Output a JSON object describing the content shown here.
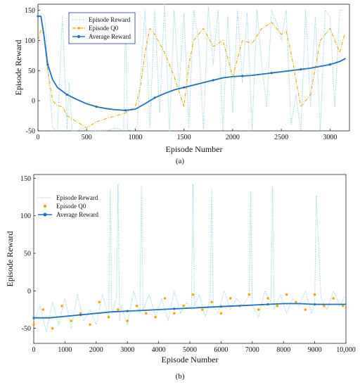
{
  "chart_data": [
    {
      "type": "line",
      "panel_label": "(a)",
      "xlabel": "Episode Number",
      "ylabel": "Episode Reward",
      "xlim": [
        0,
        3200
      ],
      "ylim": [
        -50,
        160
      ],
      "xticks": [
        0,
        500,
        1000,
        1500,
        2000,
        2500,
        3000
      ],
      "xtick_labels": [
        "0",
        "500",
        "1000",
        "1500",
        "2000",
        "2500",
        "3000"
      ],
      "yticks": [
        -50,
        0,
        50,
        100,
        150
      ],
      "ytick_labels": [
        "-50",
        "0",
        "50",
        "100",
        "150"
      ],
      "grid": false,
      "legend_position": "top-left",
      "series": [
        {
          "name": "Episode Reward",
          "color": "#87cde8",
          "style": "dotted",
          "x": [
            0,
            40,
            70,
            100,
            150,
            200,
            250,
            300,
            320,
            350,
            400,
            450,
            500,
            600,
            700,
            800,
            880,
            900,
            920,
            980,
            1020,
            1100,
            1150,
            1200,
            1250,
            1300,
            1350,
            1400,
            1450,
            1500,
            1550,
            1600,
            1650,
            1700,
            1750,
            1800,
            1850,
            1900,
            1950,
            2000,
            2050,
            2100,
            2150,
            2200,
            2250,
            2300,
            2350,
            2400,
            2450,
            2500,
            2550,
            2600,
            2650,
            2700,
            2750,
            2800,
            2850,
            2900,
            2950,
            3000,
            3050,
            3100,
            3150
          ],
          "y": [
            140,
            145,
            140,
            60,
            -45,
            -50,
            140,
            -48,
            30,
            -50,
            -50,
            -45,
            -50,
            -50,
            -50,
            -45,
            -50,
            140,
            -48,
            -50,
            -40,
            150,
            -45,
            150,
            -20,
            160,
            -50,
            150,
            20,
            145,
            -45,
            150,
            100,
            -48,
            155,
            60,
            150,
            -50,
            140,
            -20,
            150,
            30,
            145,
            -48,
            150,
            60,
            -10,
            150,
            130,
            100,
            150,
            -40,
            10,
            -50,
            150,
            -10,
            140,
            -50,
            150,
            140,
            -10,
            150,
            150
          ]
        },
        {
          "name": "Episode Q0",
          "color": "#f0a900",
          "style": "dashdot",
          "x": [
            0,
            30,
            60,
            100,
            150,
            200,
            250,
            300,
            350,
            400,
            450,
            500,
            600,
            700,
            800,
            900,
            1000,
            1050,
            1100,
            1150,
            1200,
            1300,
            1400,
            1500,
            1550,
            1600,
            1700,
            1800,
            1900,
            2000,
            2100,
            2200,
            2300,
            2400,
            2500,
            2550,
            2600,
            2700,
            2800,
            2900,
            3000,
            3100,
            3150
          ],
          "y": [
            100,
            118,
            110,
            50,
            0,
            -8,
            -10,
            -25,
            -30,
            -35,
            -40,
            -45,
            -35,
            -30,
            -25,
            -20,
            -10,
            20,
            80,
            120,
            110,
            80,
            40,
            -10,
            60,
            100,
            120,
            90,
            100,
            40,
            100,
            95,
            120,
            130,
            110,
            115,
            80,
            -10,
            10,
            100,
            120,
            80,
            110
          ]
        },
        {
          "name": "Average Reward",
          "color": "#1f6fbf",
          "style": "solid",
          "x": [
            0,
            30,
            60,
            100,
            150,
            200,
            300,
            400,
            500,
            600,
            700,
            800,
            900,
            1000,
            1100,
            1200,
            1300,
            1400,
            1500,
            1600,
            1700,
            1800,
            1900,
            2000,
            2100,
            2200,
            2300,
            2400,
            2500,
            2600,
            2700,
            2800,
            2900,
            3000,
            3100,
            3160
          ],
          "y": [
            140,
            140,
            110,
            60,
            35,
            22,
            10,
            2,
            -5,
            -10,
            -13,
            -15,
            -16,
            -14,
            -5,
            5,
            12,
            18,
            22,
            26,
            30,
            34,
            38,
            40,
            41,
            42,
            44,
            46,
            48,
            50,
            52,
            54,
            57,
            60,
            65,
            70
          ]
        }
      ]
    },
    {
      "type": "line",
      "panel_label": "(b)",
      "xlabel": "Episode Number",
      "ylabel": "Episode Reward",
      "xlim": [
        0,
        10000
      ],
      "ylim": [
        -70,
        155
      ],
      "xticks": [
        0,
        1000,
        2000,
        3000,
        4000,
        5000,
        6000,
        7000,
        8000,
        9000,
        10000
      ],
      "xtick_labels": [
        "0",
        "1000",
        "2000",
        "3000",
        "4000",
        "5000",
        "6000",
        "7000",
        "8000",
        "9000",
        "10,000"
      ],
      "yticks": [
        -50,
        0,
        50,
        100,
        150
      ],
      "ytick_labels": [
        "-50",
        "0",
        "50",
        "100",
        "150"
      ],
      "grid": false,
      "legend_position": "top-left",
      "series": [
        {
          "name": "Episode Reward",
          "color": "#87cde8",
          "style": "dotted",
          "x": [
            0,
            200,
            400,
            600,
            800,
            1000,
            1200,
            1400,
            1600,
            1800,
            2000,
            2200,
            2400,
            2450,
            2500,
            2650,
            2700,
            2750,
            2800,
            3000,
            3200,
            3400,
            3450,
            3500,
            3700,
            3900,
            4100,
            4300,
            4500,
            4700,
            4900,
            5050,
            5100,
            5150,
            5300,
            5500,
            5650,
            5700,
            5750,
            5900,
            6100,
            6300,
            6500,
            6700,
            6900,
            6950,
            7000,
            7200,
            7400,
            7600,
            7650,
            7700,
            7900,
            8100,
            8300,
            8500,
            8700,
            8900,
            9000,
            9050,
            9200,
            9400,
            9600,
            9800,
            10000
          ],
          "y": [
            -40,
            -20,
            -55,
            -15,
            -45,
            -10,
            -50,
            -5,
            -40,
            -25,
            -45,
            -5,
            -35,
            135,
            -30,
            -10,
            142,
            -40,
            -20,
            -45,
            0,
            -30,
            140,
            -25,
            -5,
            -35,
            -10,
            -40,
            0,
            -30,
            -15,
            -25,
            142,
            -20,
            -5,
            -35,
            -10,
            135,
            -20,
            -30,
            0,
            -25,
            -10,
            -20,
            -5,
            132,
            -20,
            -35,
            0,
            -15,
            138,
            -25,
            -5,
            -30,
            -10,
            -20,
            0,
            -30,
            -15,
            127,
            -10,
            -25,
            0,
            -20,
            -5
          ]
        },
        {
          "name": "Episode Q0",
          "color": "#f0a900",
          "style": "dots",
          "x": [
            0,
            300,
            600,
            900,
            1200,
            1500,
            1800,
            2100,
            2400,
            2700,
            3000,
            3300,
            3600,
            3900,
            4200,
            4500,
            4800,
            5100,
            5400,
            5700,
            6000,
            6300,
            6600,
            6900,
            7200,
            7500,
            7800,
            8100,
            8400,
            8700,
            9000,
            9300,
            9600,
            9900
          ],
          "y": [
            -45,
            -25,
            -50,
            -20,
            -40,
            -30,
            -45,
            -15,
            -35,
            -25,
            -40,
            -20,
            -30,
            -35,
            -10,
            -30,
            -20,
            -5,
            -25,
            -15,
            -30,
            -10,
            -20,
            -5,
            -25,
            -10,
            -20,
            -5,
            -15,
            -25,
            -5,
            -20,
            -10,
            -20
          ]
        },
        {
          "name": "Average Reward",
          "color": "#1f6fbf",
          "style": "solid",
          "x": [
            0,
            500,
            1000,
            1500,
            2000,
            2500,
            3000,
            3500,
            4000,
            4500,
            5000,
            5500,
            6000,
            6500,
            7000,
            7500,
            8000,
            8500,
            9000,
            9500,
            10000
          ],
          "y": [
            -36,
            -36,
            -34,
            -32,
            -30,
            -28,
            -27,
            -26,
            -25,
            -24,
            -23,
            -22,
            -21,
            -20,
            -19,
            -18,
            -17,
            -17,
            -18,
            -18,
            -18
          ]
        }
      ]
    }
  ]
}
